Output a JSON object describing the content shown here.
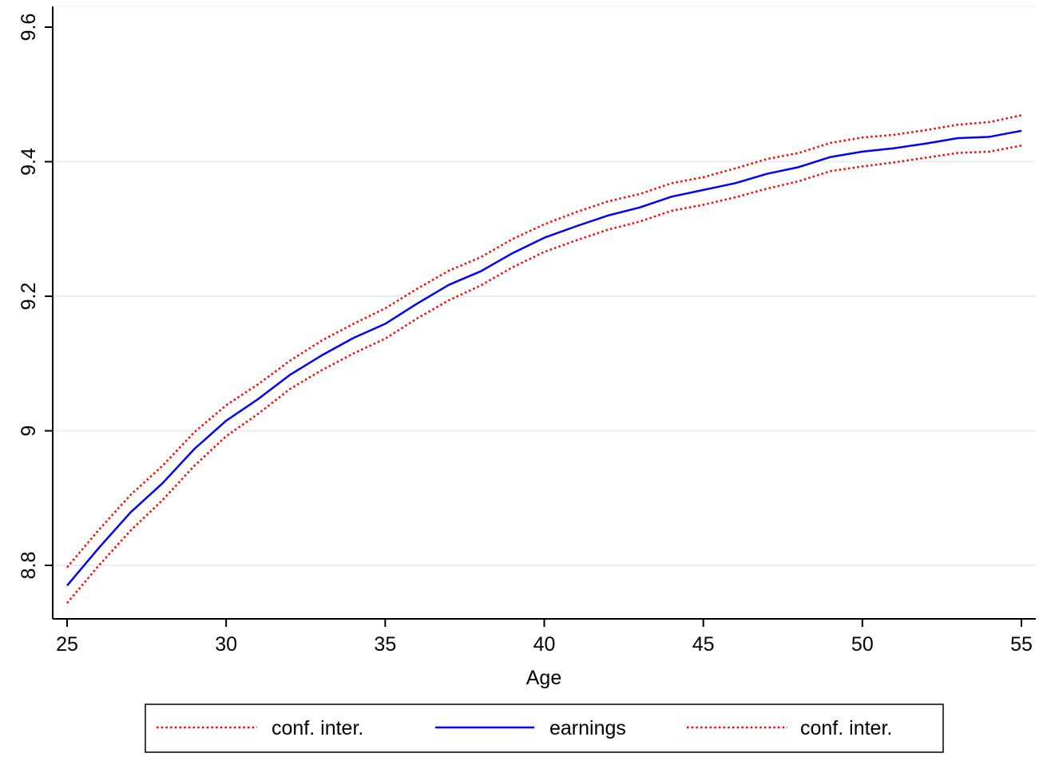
{
  "chart_data": {
    "type": "line",
    "title": "",
    "xlabel": "Age",
    "ylabel": "",
    "xlim": [
      25,
      55
    ],
    "ylim": [
      8.72,
      9.6
    ],
    "xticks": [
      25,
      30,
      35,
      40,
      45,
      50,
      55
    ],
    "yticks": [
      8.8,
      9,
      9.2,
      9.4,
      9.6
    ],
    "xtick_labels": [
      "25",
      "30",
      "35",
      "40",
      "45",
      "50",
      "55"
    ],
    "ytick_labels": [
      "8.8",
      "9",
      "9.2",
      "9.4",
      "9.6"
    ],
    "grid": "horizontal",
    "legend_position": "bottom",
    "x": [
      25,
      26,
      27,
      28,
      29,
      30,
      31,
      32,
      33,
      34,
      35,
      36,
      37,
      38,
      39,
      40,
      41,
      42,
      43,
      44,
      45,
      46,
      47,
      48,
      49,
      50,
      51,
      52,
      53,
      54,
      55
    ],
    "series": [
      {
        "name": "conf. inter.",
        "color": "#ff0000",
        "style": "dotted",
        "values": [
          8.797,
          8.853,
          8.905,
          8.948,
          8.998,
          9.038,
          9.069,
          9.104,
          9.134,
          9.159,
          9.182,
          9.211,
          9.238,
          9.258,
          9.285,
          9.307,
          9.325,
          9.341,
          9.352,
          9.368,
          9.377,
          9.39,
          9.404,
          9.413,
          9.428,
          9.436,
          9.44,
          9.447,
          9.455,
          9.459,
          9.469
        ]
      },
      {
        "name": "earnings",
        "color": "#0000ff",
        "style": "solid",
        "values": [
          8.77,
          8.826,
          8.879,
          8.922,
          8.973,
          9.015,
          9.047,
          9.083,
          9.112,
          9.138,
          9.159,
          9.189,
          9.217,
          9.237,
          9.264,
          9.287,
          9.304,
          9.32,
          9.332,
          9.348,
          9.358,
          9.368,
          9.382,
          9.392,
          9.407,
          9.415,
          9.42,
          9.427,
          9.435,
          9.437,
          9.446
        ]
      },
      {
        "name": "conf. inter.",
        "color": "#ff0000",
        "style": "dotted",
        "values": [
          8.744,
          8.8,
          8.852,
          8.897,
          8.948,
          8.992,
          9.025,
          9.062,
          9.09,
          9.115,
          9.137,
          9.167,
          9.194,
          9.216,
          9.243,
          9.266,
          9.283,
          9.299,
          9.311,
          9.327,
          9.336,
          9.347,
          9.36,
          9.371,
          9.386,
          9.393,
          9.399,
          9.406,
          9.413,
          9.415,
          9.424
        ]
      }
    ]
  }
}
